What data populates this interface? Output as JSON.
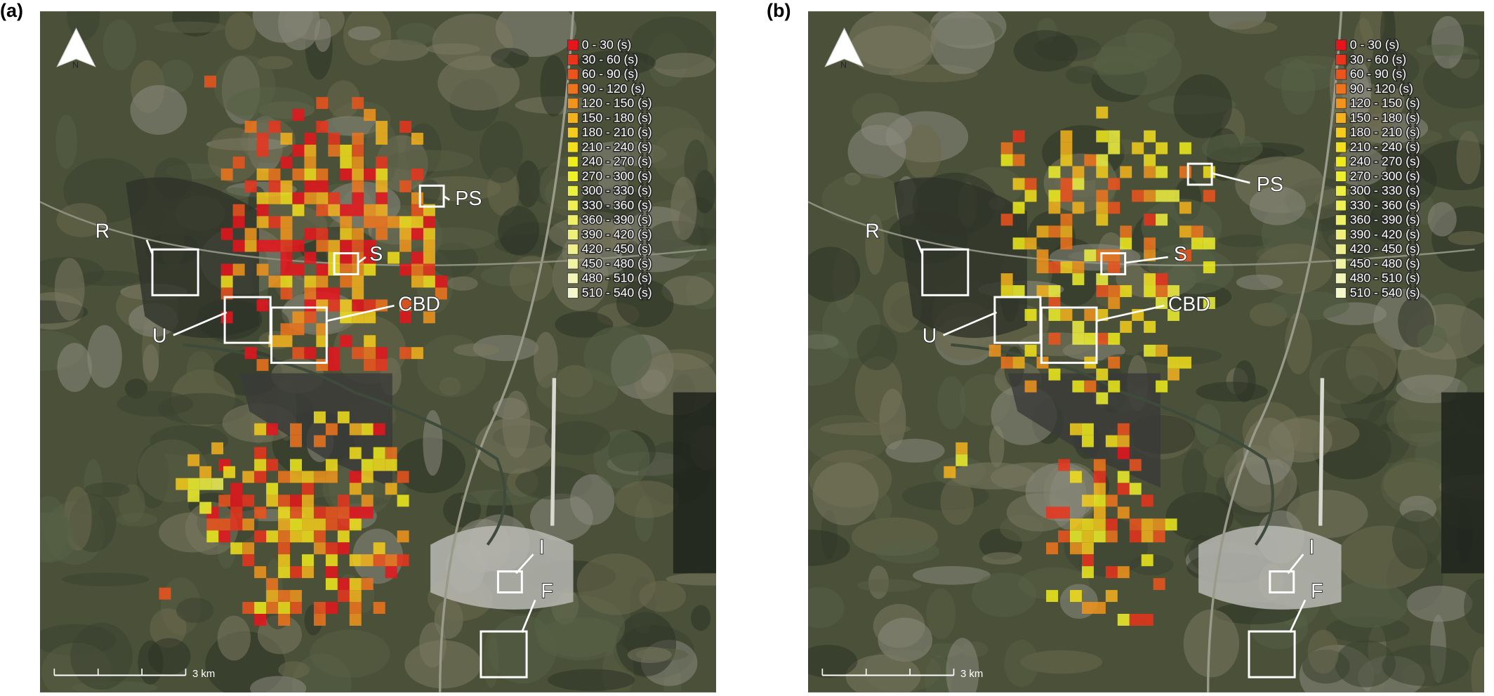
{
  "panels": [
    {
      "label": "(a)",
      "north": "N",
      "scale": "3 km",
      "annotations": [
        "R",
        "U",
        "CBD",
        "S",
        "PS",
        "I",
        "F"
      ],
      "legend": [
        {
          "label": "0 - 30 (s)",
          "color": "#e8141c"
        },
        {
          "label": "30 - 60 (s)",
          "color": "#ea341c"
        },
        {
          "label": "60 - 90 (s)",
          "color": "#ec541c"
        },
        {
          "label": "90 - 120 (s)",
          "color": "#ee741c"
        },
        {
          "label": "120 - 150 (s)",
          "color": "#f0941c"
        },
        {
          "label": "150 - 180 (s)",
          "color": "#f3b21c"
        },
        {
          "label": "180 - 210 (s)",
          "color": "#f5cc1c"
        },
        {
          "label": "210 - 240 (s)",
          "color": "#f3e01c"
        },
        {
          "label": "240 - 270 (s)",
          "color": "#f0ec1c"
        },
        {
          "label": "270 - 300 (s)",
          "color": "#eef02c"
        },
        {
          "label": "300 - 330 (s)",
          "color": "#eef040"
        },
        {
          "label": "330 - 360 (s)",
          "color": "#eef054"
        },
        {
          "label": "360 - 390 (s)",
          "color": "#eef068"
        },
        {
          "label": "390 - 420 (s)",
          "color": "#eef07c"
        },
        {
          "label": "420 - 450 (s)",
          "color": "#eef090"
        },
        {
          "label": "450 - 480 (s)",
          "color": "#f0f2a4"
        },
        {
          "label": "480 - 510 (s)",
          "color": "#f2f4b8"
        },
        {
          "label": "510 - 540 (s)",
          "color": "#f4f6cc"
        }
      ]
    },
    {
      "label": "(b)",
      "north": "N",
      "scale": "3 km",
      "annotations": [
        "R",
        "U",
        "CBD",
        "S",
        "PS",
        "I",
        "F"
      ],
      "legend": [
        {
          "label": "0 - 30 (s)",
          "color": "#e8141c"
        },
        {
          "label": "30 - 60 (s)",
          "color": "#ea341c"
        },
        {
          "label": "60 - 90 (s)",
          "color": "#ec541c"
        },
        {
          "label": "90 - 120 (s)",
          "color": "#ee741c"
        },
        {
          "label": "120 - 150 (s)",
          "color": "#f0941c"
        },
        {
          "label": "150 - 180 (s)",
          "color": "#f3b21c"
        },
        {
          "label": "180 - 210 (s)",
          "color": "#f5cc1c"
        },
        {
          "label": "210 - 240 (s)",
          "color": "#f3e01c"
        },
        {
          "label": "240 - 270 (s)",
          "color": "#f0ec1c"
        },
        {
          "label": "270 - 300 (s)",
          "color": "#eef02c"
        },
        {
          "label": "300 - 330 (s)",
          "color": "#eef040"
        },
        {
          "label": "330 - 360 (s)",
          "color": "#eef054"
        },
        {
          "label": "360 - 390 (s)",
          "color": "#eef068"
        },
        {
          "label": "390 - 420 (s)",
          "color": "#eef07c"
        },
        {
          "label": "420 - 450 (s)",
          "color": "#eef090"
        },
        {
          "label": "450 - 480 (s)",
          "color": "#f0f2a4"
        },
        {
          "label": "480 - 510 (s)",
          "color": "#f2f4b8"
        },
        {
          "label": "510 - 540 (s)",
          "color": "#f4f6cc"
        }
      ]
    }
  ]
}
